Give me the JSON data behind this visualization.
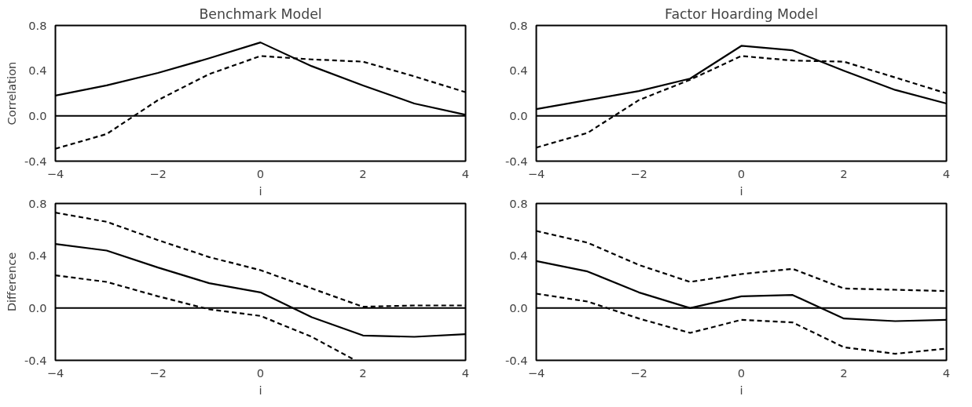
{
  "chart_data": [
    {
      "type": "line",
      "title": "Benchmark Model",
      "ylabel": "Correlation",
      "xlabel": "i",
      "x": [
        -4,
        -3,
        -2,
        -1,
        0,
        1,
        2,
        3,
        4
      ],
      "xlim": [
        -4,
        4
      ],
      "xticks": [
        -4,
        -2,
        0,
        2,
        4
      ],
      "ylim": [
        -0.4,
        0.8
      ],
      "yticks": [
        {
          "value": 0.8,
          "label": "0.8"
        },
        {
          "value": 0.4,
          "label": "0.4"
        },
        {
          "value": 0,
          "label": "0.0"
        },
        {
          "value": -0.4,
          "label": "-0.4"
        }
      ],
      "ref_lines": [
        {
          "axis": "y",
          "value": 0,
          "color": "#000000",
          "line_style": "solid"
        }
      ],
      "series": [
        {
          "color": "#000000",
          "line_style": "solid",
          "values": [
            0.18,
            0.27,
            0.38,
            0.51,
            0.65,
            0.44,
            0.27,
            0.11,
            0.01
          ]
        },
        {
          "color": "#000000",
          "line_style": "dashed",
          "values": [
            -0.29,
            -0.16,
            0.14,
            0.37,
            0.53,
            0.5,
            0.48,
            0.35,
            0.21
          ]
        }
      ]
    },
    {
      "type": "line",
      "title": "Factor Hoarding Model",
      "xlabel": "i",
      "x": [
        -4,
        -3,
        -2,
        -1,
        0,
        1,
        2,
        3,
        4
      ],
      "xlim": [
        -4,
        4
      ],
      "xticks": [
        -4,
        -2,
        0,
        2,
        4
      ],
      "ylim": [
        -0.4,
        0.8
      ],
      "yticks": [
        {
          "value": 0.8,
          "label": "0.8"
        },
        {
          "value": 0.4,
          "label": "0.4"
        },
        {
          "value": 0,
          "label": "0.0"
        },
        {
          "value": -0.4,
          "label": "-0.4"
        }
      ],
      "ref_lines": [
        {
          "axis": "y",
          "value": 0,
          "color": "#000000",
          "line_style": "solid"
        }
      ],
      "series": [
        {
          "color": "#000000",
          "line_style": "solid",
          "values": [
            0.06,
            0.14,
            0.22,
            0.33,
            0.62,
            0.58,
            0.4,
            0.23,
            0.11
          ]
        },
        {
          "color": "#000000",
          "line_style": "dashed",
          "values": [
            -0.28,
            -0.15,
            0.14,
            0.32,
            0.53,
            0.49,
            0.48,
            0.34,
            0.2
          ]
        }
      ]
    },
    {
      "type": "line",
      "ylabel": "Difference",
      "xlabel": "i",
      "x": [
        -4,
        -3,
        -2,
        -1,
        0,
        1,
        2,
        3,
        4
      ],
      "xlim": [
        -4,
        4
      ],
      "xticks": [
        -4,
        -2,
        0,
        2,
        4
      ],
      "ylim": [
        -0.4,
        0.8
      ],
      "yticks": [
        {
          "value": 0.8,
          "label": "0.8"
        },
        {
          "value": 0.4,
          "label": "0.4"
        },
        {
          "value": 0,
          "label": "0.0"
        },
        {
          "value": -0.4,
          "label": "-0.4"
        }
      ],
      "ref_lines": [
        {
          "axis": "y",
          "value": 0,
          "color": "#000000",
          "line_style": "solid"
        }
      ],
      "series": [
        {
          "color": "#000000",
          "line_style": "solid",
          "values": [
            0.49,
            0.44,
            0.31,
            0.19,
            0.12,
            -0.07,
            -0.21,
            -0.22,
            -0.2
          ]
        },
        {
          "color": "#000000",
          "line_style": "dashed",
          "values": [
            0.73,
            0.66,
            0.52,
            0.39,
            0.29,
            0.15,
            0.01,
            0.02,
            0.02
          ]
        },
        {
          "color": "#000000",
          "line_style": "dashed",
          "x": [
            -4,
            -3,
            -2,
            -1,
            0,
            1,
            1.85
          ],
          "values": [
            0.25,
            0.2,
            0.09,
            -0.01,
            -0.06,
            -0.22,
            -0.4
          ]
        }
      ]
    },
    {
      "type": "line",
      "xlabel": "i",
      "x": [
        -4,
        -3,
        -2,
        -1,
        0,
        1,
        2,
        3,
        4
      ],
      "xlim": [
        -4,
        4
      ],
      "xticks": [
        -4,
        -2,
        0,
        2,
        4
      ],
      "ylim": [
        -0.4,
        0.8
      ],
      "yticks": [
        {
          "value": 0.8,
          "label": "0.8"
        },
        {
          "value": 0.4,
          "label": "0.4"
        },
        {
          "value": 0,
          "label": "0.0"
        },
        {
          "value": -0.4,
          "label": "-0.4"
        }
      ],
      "ref_lines": [
        {
          "axis": "y",
          "value": 0,
          "color": "#000000",
          "line_style": "solid"
        }
      ],
      "series": [
        {
          "color": "#000000",
          "line_style": "solid",
          "values": [
            0.36,
            0.28,
            0.12,
            0.0,
            0.09,
            0.1,
            -0.08,
            -0.1,
            -0.09
          ]
        },
        {
          "color": "#000000",
          "line_style": "dashed",
          "values": [
            0.59,
            0.5,
            0.33,
            0.2,
            0.26,
            0.3,
            0.15,
            0.14,
            0.13
          ]
        },
        {
          "color": "#000000",
          "line_style": "dashed",
          "values": [
            0.11,
            0.05,
            -0.08,
            -0.19,
            -0.09,
            -0.11,
            -0.3,
            -0.35,
            -0.31
          ]
        }
      ]
    }
  ]
}
